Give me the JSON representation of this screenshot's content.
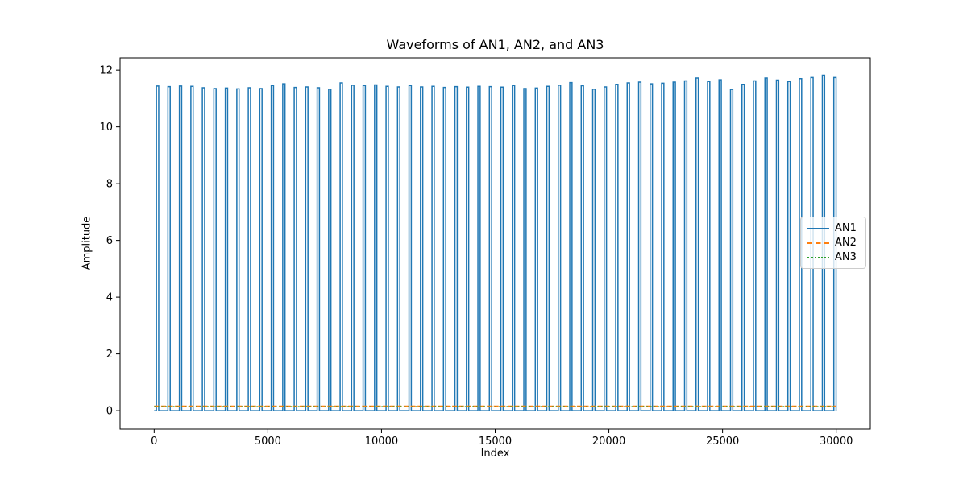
{
  "chart_data": {
    "type": "line",
    "title": "Waveforms of AN1, AN2, and AN3",
    "xlabel": "Index",
    "ylabel": "Amplitude",
    "xlim": [
      -1500,
      31500
    ],
    "ylim": [
      -0.65,
      12.43
    ],
    "xticks": [
      0,
      5000,
      10000,
      15000,
      20000,
      25000,
      30000
    ],
    "yticks": [
      0,
      2,
      4,
      6,
      8,
      10,
      12
    ],
    "grid": false,
    "legend": {
      "position": "center right",
      "entries": [
        "AN1",
        "AN2",
        "AN3"
      ]
    },
    "series": [
      {
        "name": "AN1",
        "color": "#1f77b4",
        "style": "solid",
        "kind": "pulse_train",
        "baseline": 0,
        "pulse_start": 100,
        "pulse_period": 505,
        "pulse_width": 100,
        "x_end": 30000,
        "pulse_heights": [
          11.44,
          11.42,
          11.44,
          11.43,
          11.38,
          11.35,
          11.37,
          11.34,
          11.38,
          11.35,
          11.46,
          11.52,
          11.39,
          11.41,
          11.38,
          11.33,
          11.55,
          11.47,
          11.46,
          11.48,
          11.43,
          11.41,
          11.46,
          11.41,
          11.43,
          11.39,
          11.42,
          11.4,
          11.43,
          11.42,
          11.4,
          11.46,
          11.35,
          11.37,
          11.43,
          11.47,
          11.56,
          11.45,
          11.33,
          11.41,
          11.5,
          11.55,
          11.58,
          11.52,
          11.54,
          11.58,
          11.62,
          11.72,
          11.6,
          11.66,
          11.32,
          11.5,
          11.62,
          11.72,
          11.65,
          11.6,
          11.7,
          11.74,
          11.82,
          11.74
        ]
      },
      {
        "name": "AN2",
        "color": "#ff7f0e",
        "style": "dashed",
        "kind": "constant",
        "value": 0.16,
        "x_start": 0,
        "x_end": 30000
      },
      {
        "name": "AN3",
        "color": "#2ca02c",
        "style": "dotted",
        "kind": "constant",
        "value": 0.14,
        "x_start": 0,
        "x_end": 30000
      }
    ]
  }
}
